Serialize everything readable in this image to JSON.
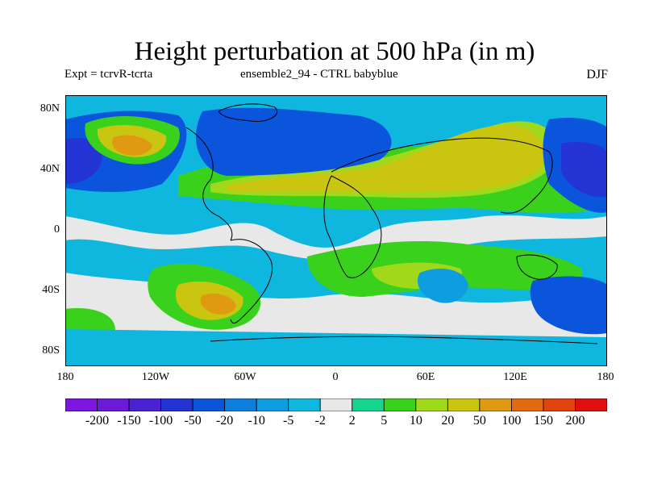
{
  "title": "Height perturbation at 500 hPa (in m)",
  "expt": "Expt = tcrvR-tcrta",
  "ensemble": "ensemble2_94 - CTRL babyblue",
  "season": "DJF",
  "lat_labels": [
    "80N",
    "40N",
    "0",
    "40S",
    "80S"
  ],
  "lon_labels": [
    "180",
    "120W",
    "60W",
    "0",
    "60E",
    "120E",
    "180"
  ],
  "colorbar": {
    "labels": [
      "-200",
      "-150",
      "-100",
      "-50",
      "-20",
      "-10",
      "-5",
      "-2",
      "2",
      "5",
      "10",
      "20",
      "50",
      "100",
      "150",
      "200"
    ],
    "colors": [
      "#7e15e0",
      "#6b1ad8",
      "#4a22d3",
      "#2333d4",
      "#0a55dc",
      "#0c7ede",
      "#0e9ee0",
      "#0fb7de",
      "#e8e8e8",
      "#15d58d",
      "#39d11c",
      "#a0d81c",
      "#c9c510",
      "#e09a12",
      "#e36a0e",
      "#e0440c",
      "#e01010"
    ]
  }
}
